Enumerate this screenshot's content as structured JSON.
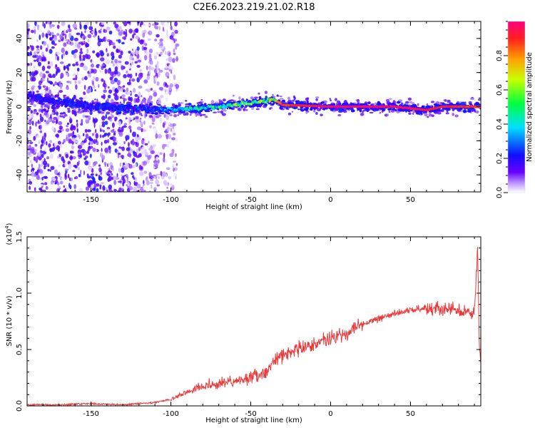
{
  "title": "C2E6.2023.219.21.02.R18",
  "chart_data": [
    {
      "type": "heatmap",
      "name": "spectrogram",
      "xlabel": "Height of straight line (km)",
      "ylabel": "Frequency (Hz)",
      "xlim": [
        -190,
        94
      ],
      "ylim": [
        -50,
        50
      ],
      "xticks": [
        -150,
        -100,
        -50,
        0,
        50
      ],
      "yticks": [
        -40,
        -20,
        0,
        20,
        40
      ],
      "colorbar": {
        "label": "Normalized spectral amplitude",
        "range": [
          0,
          1
        ],
        "ticks": [
          "0.0",
          "0.2",
          "0.4",
          "0.6",
          "0.8"
        ],
        "colormap": "rainbow"
      },
      "ridge": {
        "x": [
          -190,
          -150,
          -120,
          -100,
          -70,
          -50,
          -35,
          -30,
          0,
          40,
          60,
          70,
          94
        ],
        "freq": [
          6,
          0,
          -1,
          -2,
          0,
          2,
          4,
          1,
          0,
          0,
          -2,
          0,
          0
        ]
      },
      "amplitude": {
        "x": [
          -190,
          -120,
          -100,
          -70,
          -40,
          -30,
          0,
          40,
          70,
          94
        ],
        "value": [
          0.2,
          0.25,
          0.35,
          0.5,
          0.65,
          0.9,
          1.0,
          1.0,
          0.95,
          0.9
        ]
      }
    },
    {
      "type": "line",
      "name": "snr",
      "xlabel": "Height of straight line (km)",
      "ylabel": "SNR (10 * v/v)",
      "exponent_label": "(x10",
      "exponent_sup": "4",
      "exponent_close": ")",
      "xlim": [
        -190,
        94
      ],
      "ylim": [
        0,
        1.5
      ],
      "xticks": [
        -150,
        -100,
        -50,
        0,
        50
      ],
      "yticks": [
        "0.0",
        "0.5",
        "1.0",
        "1.5"
      ],
      "color": "#e83a3a",
      "series": [
        {
          "x": [
            -190,
            -170,
            -150,
            -130,
            -120,
            -110,
            -100,
            -90,
            -80,
            -70,
            -60,
            -50,
            -40,
            -35,
            -30,
            -20,
            -10,
            0,
            10,
            20,
            30,
            40,
            50,
            60,
            70,
            80,
            90,
            92,
            93,
            94
          ],
          "y": [
            0.01,
            0.01,
            0.02,
            0.01,
            0.02,
            0.03,
            0.06,
            0.12,
            0.18,
            0.2,
            0.22,
            0.25,
            0.3,
            0.4,
            0.45,
            0.5,
            0.55,
            0.6,
            0.65,
            0.72,
            0.78,
            0.82,
            0.85,
            0.87,
            0.86,
            0.85,
            0.82,
            1.4,
            0.6,
            0.35
          ]
        }
      ]
    }
  ]
}
